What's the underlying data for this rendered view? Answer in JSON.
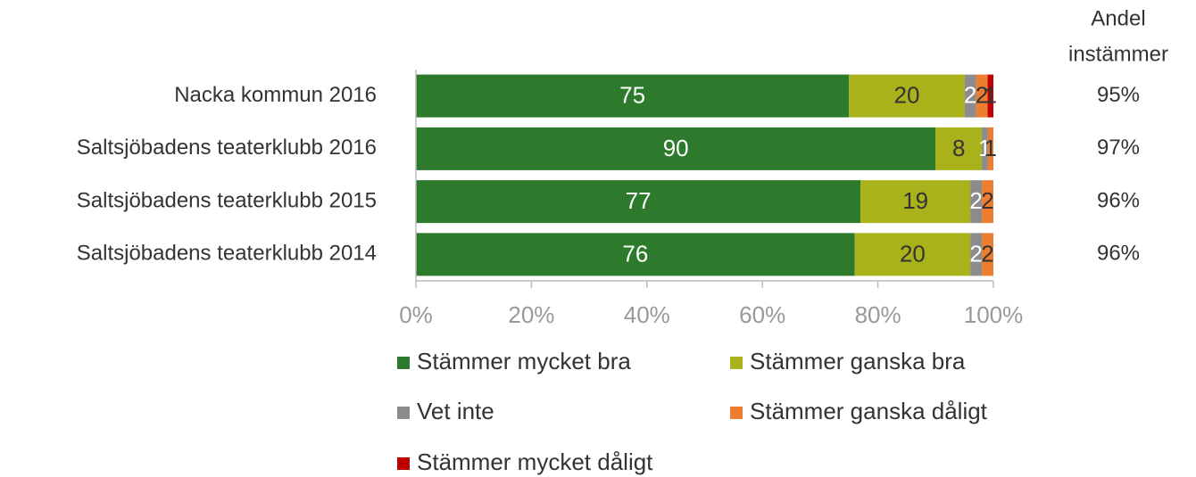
{
  "chart_data": {
    "type": "stacked_barh",
    "categories": [
      "Nacka kommun 2016",
      "Saltsjöbadens teaterklubb 2016",
      "Saltsjöbadens teaterklubb 2015",
      "Saltsjöbadens teaterklubb 2014"
    ],
    "series": [
      {
        "name": "Stämmer mycket bra",
        "color": "#2d7a2d",
        "values": [
          75,
          90,
          77,
          76
        ]
      },
      {
        "name": "Stämmer ganska bra",
        "color": "#a9b21a",
        "values": [
          20,
          8,
          19,
          20
        ]
      },
      {
        "name": "Vet inte",
        "color": "#8c8c8c",
        "values": [
          2,
          1,
          2,
          2
        ]
      },
      {
        "name": "Stämmer ganska dåligt",
        "color": "#ed7d31",
        "values": [
          2,
          1,
          2,
          2
        ]
      },
      {
        "name": "Stämmer mycket dåligt",
        "color": "#c00000",
        "values": [
          1,
          0,
          0,
          0
        ]
      }
    ],
    "xlim": [
      0,
      100
    ],
    "xticks": [
      {
        "value": 0,
        "label": "0%"
      },
      {
        "value": 20,
        "label": "20%"
      },
      {
        "value": 40,
        "label": "40%"
      },
      {
        "value": 60,
        "label": "60%"
      },
      {
        "value": 80,
        "label": "80%"
      },
      {
        "value": 100,
        "label": "100%"
      }
    ],
    "side_column": {
      "title": [
        "Andel",
        "instämmer"
      ],
      "labels": [
        "95%",
        "97%",
        "96%",
        "96%"
      ]
    }
  }
}
